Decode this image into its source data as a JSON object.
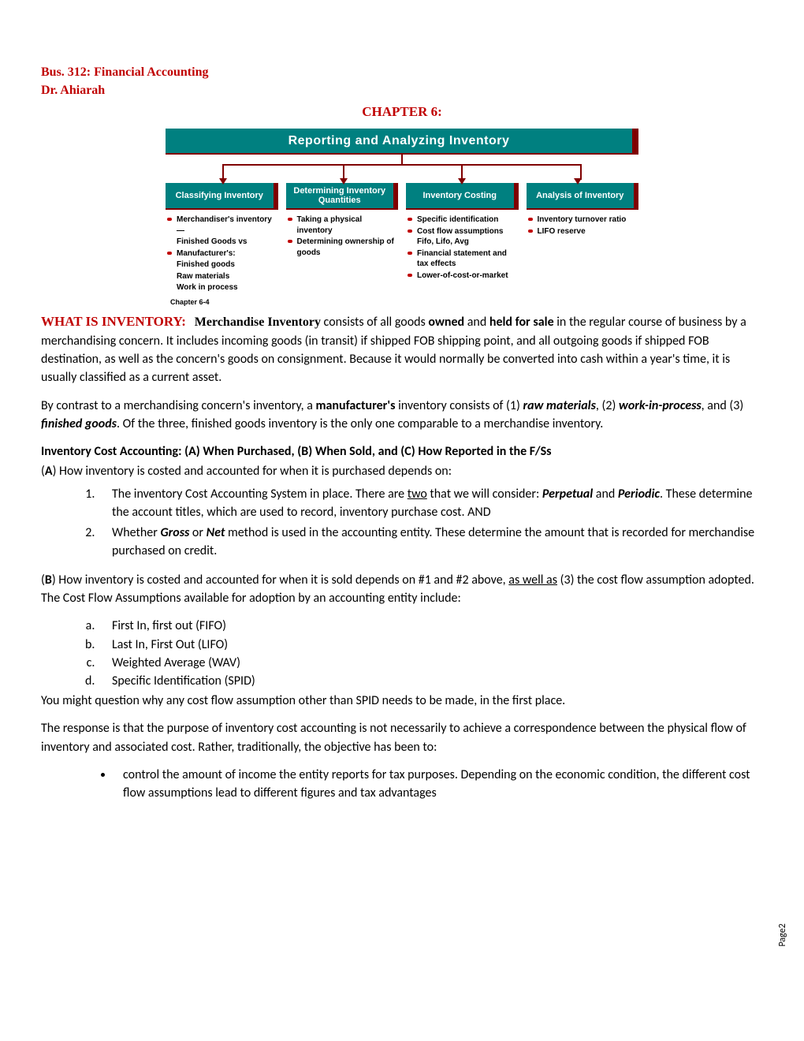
{
  "header": {
    "course": "Bus. 312: Financial Accounting",
    "instructor": "Dr. Ahiarah",
    "chapter": "CHAPTER 6:"
  },
  "diagram": {
    "title": "Reporting and Analyzing Inventory",
    "title_bg": "#008080",
    "title_fg": "#ffffff",
    "accent": "#800000",
    "bullet_color": "#c00000",
    "columns": [
      {
        "heading": "Classifying Inventory",
        "items": [
          {
            "t": "Merchandiser's inventory—",
            "dot": true
          },
          {
            "t": "Finished Goods vs",
            "dot": false
          },
          {
            "t": "Manufacturer's:",
            "dot": true
          },
          {
            "t": "Finished goods",
            "dot": false
          },
          {
            "t": "Raw materials",
            "dot": false
          },
          {
            "t": "Work in process",
            "dot": false
          }
        ]
      },
      {
        "heading": "Determining Inventory Quantities",
        "items": [
          {
            "t": "Taking a physical inventory",
            "dot": true
          },
          {
            "t": "Determining ownership of goods",
            "dot": true
          }
        ]
      },
      {
        "heading": "Inventory Costing",
        "items": [
          {
            "t": "Specific identification",
            "dot": true
          },
          {
            "t": "Cost flow assumptions Fifo, Lifo, Avg",
            "dot": true
          },
          {
            "t": "Financial statement and tax effects",
            "dot": true
          },
          {
            "t": "Lower-of-cost-or-market",
            "dot": true
          }
        ]
      },
      {
        "heading": "Analysis of Inventory",
        "items": [
          {
            "t": "Inventory turnover ratio",
            "dot": true
          },
          {
            "t": "LIFO reserve",
            "dot": true
          }
        ]
      }
    ],
    "chapter_label": "Chapter 6-4"
  },
  "body": {
    "what_is_heading": "WHAT IS INVENTORY:",
    "merch_inv": "Merchandise Inventory",
    "para1_a": " consists of all goods ",
    "owned": "owned",
    "para1_b": " and ",
    "held": "held for sale",
    "para1_c": " in the regular course of business by a merchandising concern.  It includes incoming goods (in transit) if shipped FOB shipping point, and all outgoing goods if shipped FOB destination, as well as the concern's goods on consignment.  Because it would normally be converted into cash within a year's time, it is usually classified as a current asset.",
    "para2_a": "By contrast to a merchandising concern's inventory, a ",
    "manuf": "manufacturer's",
    "para2_b": " inventory consists of (1) ",
    "raw": "raw materials",
    "para2_c": ", (2) ",
    "wip": "work-in-process",
    "para2_d": ", and (3) ",
    "fg": "finished goods",
    "para2_e": ".  Of the three, finished goods inventory is the only one comparable to a merchandise inventory.",
    "ica_heading": "Inventory Cost Accounting:  (A) When Purchased, (B) When Sold, and (C) How Reported in the F/Ss",
    "A_intro_a": "(",
    "A_letter": "A",
    "A_intro_b": ") How inventory is costed and accounted for when it is purchased depends on:",
    "list1": {
      "i1_a": "The inventory Cost Accounting System in place.  There are ",
      "two": "two",
      "i1_b": " that we will consider: ",
      "perp": "Perpetual",
      "i1_c": " and ",
      "peri": "Periodic",
      "i1_d": ". These determine the account titles, which are used to record, inventory purchase cost.  AND",
      "i2_a": "Whether ",
      "gross": "Gross",
      "i2_b": " or ",
      "net": "Net",
      "i2_c": " method is used in the accounting entity.  These determine the amount that is recorded for merchandise purchased on credit."
    },
    "B_intro_a": "(",
    "B_letter": "B",
    "B_intro_b": ") How inventory is costed and accounted for when it is sold depends on #1 and #2 above, ",
    "aswell": "as well as",
    "B_intro_c": " (3) the cost flow assumption adopted.  The Cost Flow Assumptions available for adoption by an accounting entity include:",
    "list2": {
      "a": "First In, first out (FIFO)",
      "b": "Last In, First Out (LIFO)",
      "c": "Weighted Average (WAV)",
      "d": "Specific Identification (SPID)"
    },
    "question": "You might question why any cost flow assumption other than SPID needs to be made, in the first place.",
    "response": "The response is that the purpose of inventory cost accounting is not necessarily to achieve a correspondence between the physical flow of inventory and associated cost.  Rather, traditionally, the objective has been to:",
    "objective": "control the amount of income the entity reports for tax purposes.  Depending on the economic condition, the different cost flow assumptions lead to different figures and tax advantages"
  },
  "page_number": "Page2"
}
